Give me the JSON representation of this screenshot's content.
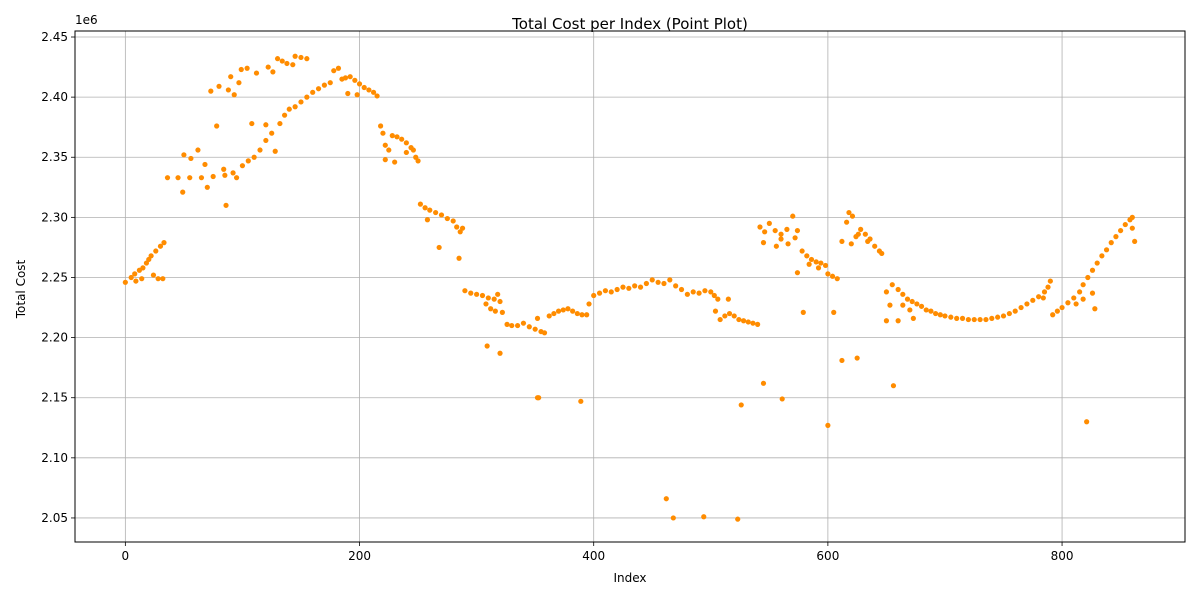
{
  "chart_data": {
    "type": "scatter",
    "title": "Total Cost per Index (Point Plot)",
    "xlabel": "Index",
    "ylabel": "Total Cost",
    "y_offset_label": "1e6",
    "xlim": [
      -43,
      905
    ],
    "ylim": [
      2030000,
      2455000
    ],
    "x_ticks": [
      0,
      200,
      400,
      600,
      800
    ],
    "x_tick_labels": [
      "0",
      "200",
      "400",
      "600",
      "800"
    ],
    "y_ticks": [
      2050000,
      2100000,
      2150000,
      2200000,
      2250000,
      2300000,
      2350000,
      2400000,
      2450000
    ],
    "y_tick_labels": [
      "2.05",
      "2.10",
      "2.15",
      "2.20",
      "2.25",
      "2.30",
      "2.35",
      "2.40",
      "2.45"
    ],
    "grid": true,
    "marker_color": "#ff8c00",
    "series": [
      {
        "points": [
          [
            0,
            2246000
          ],
          [
            5,
            2250000
          ],
          [
            8,
            2253000
          ],
          [
            12,
            2256000
          ],
          [
            15,
            2258000
          ],
          [
            18,
            2262000
          ],
          [
            22,
            2268000
          ],
          [
            26,
            2272000
          ],
          [
            30,
            2276000
          ],
          [
            33,
            2279000
          ],
          [
            9,
            2247000
          ],
          [
            14,
            2249000
          ],
          [
            28,
            2249000
          ],
          [
            32,
            2249000
          ],
          [
            24,
            2252000
          ],
          [
            20,
            2265000
          ],
          [
            36,
            2333000
          ],
          [
            45,
            2333000
          ],
          [
            55,
            2333000
          ],
          [
            65,
            2333000
          ],
          [
            75,
            2334000
          ],
          [
            85,
            2335000
          ],
          [
            92,
            2337000
          ],
          [
            49,
            2321000
          ],
          [
            70,
            2325000
          ],
          [
            86,
            2310000
          ],
          [
            50,
            2352000
          ],
          [
            56,
            2349000
          ],
          [
            62,
            2356000
          ],
          [
            68,
            2344000
          ],
          [
            78,
            2376000
          ],
          [
            84,
            2340000
          ],
          [
            95,
            2333000
          ],
          [
            73,
            2405000
          ],
          [
            80,
            2409000
          ],
          [
            88,
            2406000
          ],
          [
            90,
            2417000
          ],
          [
            93,
            2402000
          ],
          [
            97,
            2412000
          ],
          [
            99,
            2423000
          ],
          [
            104,
            2424000
          ],
          [
            108,
            2378000
          ],
          [
            112,
            2420000
          ],
          [
            100,
            2343000
          ],
          [
            105,
            2347000
          ],
          [
            110,
            2350000
          ],
          [
            115,
            2356000
          ],
          [
            120,
            2364000
          ],
          [
            125,
            2370000
          ],
          [
            128,
            2355000
          ],
          [
            132,
            2378000
          ],
          [
            136,
            2385000
          ],
          [
            140,
            2390000
          ],
          [
            120,
            2377000
          ],
          [
            122,
            2425000
          ],
          [
            126,
            2421000
          ],
          [
            130,
            2432000
          ],
          [
            134,
            2430000
          ],
          [
            138,
            2428000
          ],
          [
            143,
            2427000
          ],
          [
            145,
            2434000
          ],
          [
            150,
            2433000
          ],
          [
            155,
            2432000
          ],
          [
            145,
            2392000
          ],
          [
            150,
            2396000
          ],
          [
            155,
            2400000
          ],
          [
            160,
            2404000
          ],
          [
            165,
            2407000
          ],
          [
            170,
            2410000
          ],
          [
            175,
            2412000
          ],
          [
            178,
            2422000
          ],
          [
            182,
            2424000
          ],
          [
            185,
            2415000
          ],
          [
            188,
            2416000
          ],
          [
            192,
            2417000
          ],
          [
            196,
            2414000
          ],
          [
            200,
            2411000
          ],
          [
            204,
            2408000
          ],
          [
            208,
            2406000
          ],
          [
            212,
            2404000
          ],
          [
            215,
            2401000
          ],
          [
            190,
            2403000
          ],
          [
            198,
            2402000
          ],
          [
            218,
            2376000
          ],
          [
            220,
            2370000
          ],
          [
            222,
            2360000
          ],
          [
            225,
            2356000
          ],
          [
            228,
            2368000
          ],
          [
            232,
            2367000
          ],
          [
            236,
            2365000
          ],
          [
            240,
            2362000
          ],
          [
            244,
            2358000
          ],
          [
            248,
            2350000
          ],
          [
            222,
            2348000
          ],
          [
            230,
            2346000
          ],
          [
            240,
            2354000
          ],
          [
            246,
            2356000
          ],
          [
            250,
            2347000
          ],
          [
            252,
            2311000
          ],
          [
            256,
            2308000
          ],
          [
            260,
            2306000
          ],
          [
            265,
            2304000
          ],
          [
            270,
            2302000
          ],
          [
            275,
            2299000
          ],
          [
            280,
            2297000
          ],
          [
            283,
            2292000
          ],
          [
            286,
            2288000
          ],
          [
            288,
            2291000
          ],
          [
            258,
            2298000
          ],
          [
            268,
            2275000
          ],
          [
            285,
            2266000
          ],
          [
            290,
            2239000
          ],
          [
            295,
            2237000
          ],
          [
            300,
            2236000
          ],
          [
            305,
            2235000
          ],
          [
            310,
            2233000
          ],
          [
            315,
            2232000
          ],
          [
            318,
            2236000
          ],
          [
            320,
            2230000
          ],
          [
            322,
            2221000
          ],
          [
            326,
            2211000
          ],
          [
            308,
            2228000
          ],
          [
            312,
            2224000
          ],
          [
            316,
            2222000
          ],
          [
            309,
            2193000
          ],
          [
            320,
            2187000
          ],
          [
            330,
            2210000
          ],
          [
            335,
            2210000
          ],
          [
            340,
            2212000
          ],
          [
            345,
            2209000
          ],
          [
            350,
            2207000
          ],
          [
            355,
            2205000
          ],
          [
            358,
            2204000
          ],
          [
            362,
            2218000
          ],
          [
            366,
            2220000
          ],
          [
            370,
            2222000
          ],
          [
            352,
            2150000
          ],
          [
            353,
            2150000
          ],
          [
            389,
            2147000
          ],
          [
            352,
            2216000
          ],
          [
            374,
            2223000
          ],
          [
            378,
            2224000
          ],
          [
            382,
            2222000
          ],
          [
            386,
            2220000
          ],
          [
            390,
            2219000
          ],
          [
            394,
            2219000
          ],
          [
            396,
            2228000
          ],
          [
            400,
            2235000
          ],
          [
            405,
            2237000
          ],
          [
            410,
            2239000
          ],
          [
            415,
            2238000
          ],
          [
            420,
            2240000
          ],
          [
            425,
            2242000
          ],
          [
            430,
            2241000
          ],
          [
            435,
            2243000
          ],
          [
            440,
            2242000
          ],
          [
            445,
            2245000
          ],
          [
            450,
            2248000
          ],
          [
            455,
            2246000
          ],
          [
            460,
            2245000
          ],
          [
            465,
            2248000
          ],
          [
            470,
            2243000
          ],
          [
            475,
            2240000
          ],
          [
            480,
            2236000
          ],
          [
            485,
            2238000
          ],
          [
            490,
            2237000
          ],
          [
            495,
            2239000
          ],
          [
            500,
            2238000
          ],
          [
            503,
            2235000
          ],
          [
            506,
            2232000
          ],
          [
            462,
            2066000
          ],
          [
            468,
            2050000
          ],
          [
            494,
            2051000
          ],
          [
            523,
            2049000
          ],
          [
            504,
            2222000
          ],
          [
            508,
            2215000
          ],
          [
            512,
            2218000
          ],
          [
            516,
            2220000
          ],
          [
            520,
            2218000
          ],
          [
            524,
            2215000
          ],
          [
            528,
            2214000
          ],
          [
            532,
            2213000
          ],
          [
            536,
            2212000
          ],
          [
            540,
            2211000
          ],
          [
            515,
            2232000
          ],
          [
            526,
            2144000
          ],
          [
            545,
            2162000
          ],
          [
            561,
            2149000
          ],
          [
            542,
            2292000
          ],
          [
            546,
            2288000
          ],
          [
            550,
            2295000
          ],
          [
            555,
            2289000
          ],
          [
            560,
            2286000
          ],
          [
            565,
            2290000
          ],
          [
            570,
            2301000
          ],
          [
            574,
            2289000
          ],
          [
            545,
            2279000
          ],
          [
            556,
            2276000
          ],
          [
            566,
            2278000
          ],
          [
            572,
            2283000
          ],
          [
            574,
            2254000
          ],
          [
            579,
            2221000
          ],
          [
            560,
            2282000
          ],
          [
            578,
            2272000
          ],
          [
            582,
            2268000
          ],
          [
            586,
            2265000
          ],
          [
            590,
            2263000
          ],
          [
            594,
            2262000
          ],
          [
            598,
            2260000
          ],
          [
            584,
            2261000
          ],
          [
            592,
            2258000
          ],
          [
            600,
            2253000
          ],
          [
            604,
            2251000
          ],
          [
            608,
            2249000
          ],
          [
            605,
            2221000
          ],
          [
            600,
            2127000
          ],
          [
            612,
            2181000
          ],
          [
            625,
            2183000
          ],
          [
            656,
            2160000
          ],
          [
            612,
            2280000
          ],
          [
            616,
            2296000
          ],
          [
            618,
            2304000
          ],
          [
            621,
            2301000
          ],
          [
            624,
            2284000
          ],
          [
            628,
            2290000
          ],
          [
            632,
            2286000
          ],
          [
            636,
            2282000
          ],
          [
            640,
            2276000
          ],
          [
            644,
            2272000
          ],
          [
            620,
            2278000
          ],
          [
            626,
            2286000
          ],
          [
            634,
            2280000
          ],
          [
            646,
            2270000
          ],
          [
            650,
            2238000
          ],
          [
            655,
            2244000
          ],
          [
            660,
            2240000
          ],
          [
            664,
            2236000
          ],
          [
            668,
            2232000
          ],
          [
            672,
            2230000
          ],
          [
            676,
            2228000
          ],
          [
            680,
            2226000
          ],
          [
            684,
            2223000
          ],
          [
            688,
            2222000
          ],
          [
            650,
            2214000
          ],
          [
            653,
            2227000
          ],
          [
            660,
            2214000
          ],
          [
            664,
            2227000
          ],
          [
            670,
            2223000
          ],
          [
            673,
            2216000
          ],
          [
            692,
            2220000
          ],
          [
            696,
            2219000
          ],
          [
            700,
            2218000
          ],
          [
            705,
            2217000
          ],
          [
            710,
            2216000
          ],
          [
            715,
            2216000
          ],
          [
            720,
            2215000
          ],
          [
            725,
            2215000
          ],
          [
            730,
            2215000
          ],
          [
            735,
            2215000
          ],
          [
            740,
            2216000
          ],
          [
            745,
            2217000
          ],
          [
            750,
            2218000
          ],
          [
            755,
            2220000
          ],
          [
            760,
            2222000
          ],
          [
            765,
            2225000
          ],
          [
            770,
            2228000
          ],
          [
            775,
            2231000
          ],
          [
            780,
            2234000
          ],
          [
            785,
            2238000
          ],
          [
            788,
            2242000
          ],
          [
            790,
            2247000
          ],
          [
            784,
            2233000
          ],
          [
            792,
            2219000
          ],
          [
            796,
            2222000
          ],
          [
            800,
            2225000
          ],
          [
            805,
            2229000
          ],
          [
            810,
            2233000
          ],
          [
            815,
            2238000
          ],
          [
            818,
            2244000
          ],
          [
            822,
            2250000
          ],
          [
            826,
            2256000
          ],
          [
            830,
            2262000
          ],
          [
            812,
            2228000
          ],
          [
            818,
            2232000
          ],
          [
            826,
            2237000
          ],
          [
            828,
            2224000
          ],
          [
            821,
            2130000
          ],
          [
            834,
            2268000
          ],
          [
            838,
            2273000
          ],
          [
            842,
            2279000
          ],
          [
            846,
            2284000
          ],
          [
            850,
            2289000
          ],
          [
            854,
            2294000
          ],
          [
            858,
            2298000
          ],
          [
            860,
            2300000
          ],
          [
            860,
            2291000
          ],
          [
            862,
            2280000
          ]
        ]
      }
    ]
  }
}
